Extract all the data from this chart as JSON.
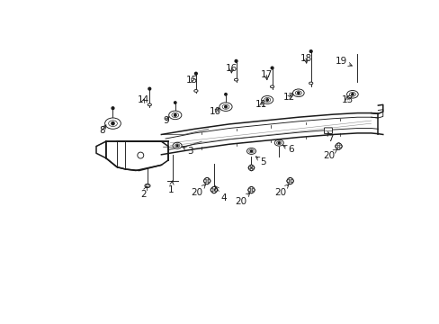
{
  "background_color": "#ffffff",
  "frame_color": "#1a1a1a",
  "figsize": [
    4.89,
    3.6
  ],
  "dpi": 100,
  "label_fontsize": 7.5,
  "components": {
    "frame": {
      "top_rail": {
        "x": [
          1.55,
          2.0,
          2.5,
          3.0,
          3.5,
          4.0,
          4.4,
          4.65,
          4.72
        ],
        "y": [
          2.28,
          2.38,
          2.46,
          2.52,
          2.57,
          2.61,
          2.64,
          2.64,
          2.62
        ]
      },
      "bottom_rail": {
        "x": [
          1.55,
          2.0,
          2.5,
          3.0,
          3.5,
          4.0,
          4.4,
          4.65,
          4.72
        ],
        "y": [
          1.9,
          2.0,
          2.08,
          2.14,
          2.19,
          2.23,
          2.26,
          2.26,
          2.24
        ]
      },
      "top_inner": {
        "x": [
          1.6,
          2.0,
          2.5,
          3.0,
          3.5,
          4.0,
          4.4,
          4.65
        ],
        "y": [
          2.22,
          2.31,
          2.39,
          2.45,
          2.5,
          2.54,
          2.57,
          2.57
        ]
      },
      "bot_inner": {
        "x": [
          1.6,
          2.0,
          2.5,
          3.0,
          3.5,
          4.0,
          4.4,
          4.65
        ],
        "y": [
          1.97,
          2.07,
          2.15,
          2.21,
          2.26,
          2.3,
          2.33,
          2.33
        ]
      }
    }
  }
}
